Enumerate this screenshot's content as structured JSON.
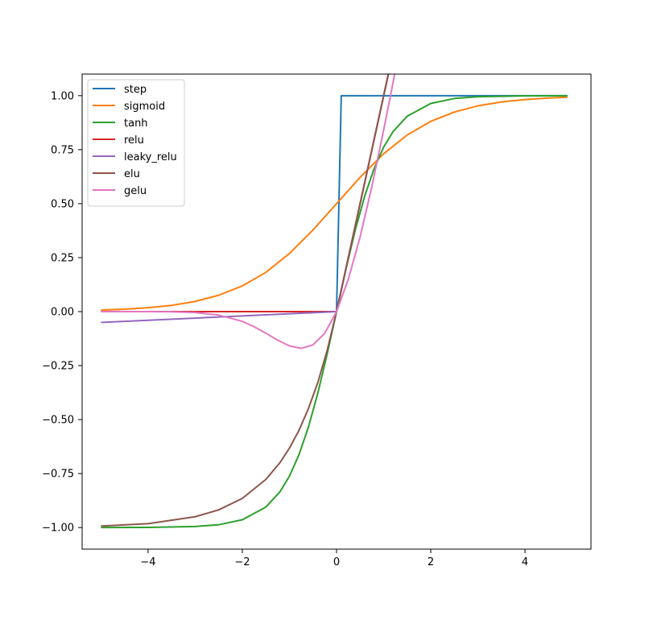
{
  "chart_data": {
    "type": "line",
    "title": "",
    "xlabel": "",
    "ylabel": "",
    "xlim": [
      -5.4,
      5.4
    ],
    "ylim": [
      -1.1,
      1.1
    ],
    "xticks": [
      -4,
      -2,
      0,
      2,
      4
    ],
    "xtick_labels": [
      "−4",
      "−2",
      "0",
      "2",
      "4"
    ],
    "yticks": [
      -1.0,
      -0.75,
      -0.5,
      -0.25,
      0.0,
      0.25,
      0.5,
      0.75,
      1.0
    ],
    "ytick_labels": [
      "−1.00",
      "−0.75",
      "−0.50",
      "−0.25",
      "0.00",
      "0.25",
      "0.50",
      "0.75",
      "1.00"
    ],
    "grid": false,
    "legend_position": "top-left",
    "series": [
      {
        "name": "step",
        "color": "#1f77b4",
        "x": [
          -5,
          -4,
          -3,
          -2,
          -1,
          0,
          0.1,
          1,
          2,
          3,
          4,
          4.9
        ],
        "y": [
          0,
          0,
          0,
          0,
          0,
          0,
          1,
          1,
          1,
          1,
          1,
          1
        ]
      },
      {
        "name": "sigmoid",
        "color": "#ff7f0e",
        "x": [
          -5,
          -4.5,
          -4,
          -3.5,
          -3,
          -2.5,
          -2,
          -1.5,
          -1,
          -0.5,
          0,
          0.5,
          1,
          1.5,
          2,
          2.5,
          3,
          3.5,
          4,
          4.5,
          4.9
        ],
        "y": [
          0.007,
          0.011,
          0.018,
          0.029,
          0.047,
          0.076,
          0.119,
          0.182,
          0.269,
          0.378,
          0.5,
          0.622,
          0.731,
          0.818,
          0.881,
          0.924,
          0.953,
          0.971,
          0.982,
          0.989,
          0.993
        ]
      },
      {
        "name": "tanh",
        "color": "#2ca02c",
        "x": [
          -5,
          -4,
          -3,
          -2.5,
          -2,
          -1.5,
          -1.2,
          -1,
          -0.8,
          -0.6,
          -0.4,
          -0.2,
          0,
          0.2,
          0.4,
          0.6,
          0.8,
          1,
          1.2,
          1.5,
          2,
          2.5,
          3,
          4,
          4.9
        ],
        "y": [
          -0.9999,
          -0.9993,
          -0.995,
          -0.987,
          -0.964,
          -0.905,
          -0.834,
          -0.762,
          -0.664,
          -0.537,
          -0.38,
          -0.197,
          0,
          0.197,
          0.38,
          0.537,
          0.664,
          0.762,
          0.834,
          0.905,
          0.964,
          0.987,
          0.995,
          0.9993,
          0.9999
        ]
      },
      {
        "name": "relu",
        "color": "#d62728",
        "x": [
          -5,
          0,
          1.1
        ],
        "y": [
          0,
          0,
          1.1
        ]
      },
      {
        "name": "leaky_relu",
        "color": "#9467bd",
        "x": [
          -5,
          0,
          1.1
        ],
        "y": [
          -0.05,
          0,
          1.1
        ]
      },
      {
        "name": "elu",
        "color": "#8c564b",
        "x": [
          -5,
          -4,
          -3,
          -2.5,
          -2,
          -1.5,
          -1.2,
          -1,
          -0.8,
          -0.6,
          -0.4,
          -0.2,
          0,
          1.1
        ],
        "y": [
          -0.993,
          -0.982,
          -0.95,
          -0.918,
          -0.865,
          -0.777,
          -0.699,
          -0.632,
          -0.551,
          -0.451,
          -0.33,
          -0.181,
          0,
          1.1
        ]
      },
      {
        "name": "gelu",
        "color": "#e377c2",
        "x": [
          -5,
          -4,
          -3.5,
          -3,
          -2.5,
          -2,
          -1.75,
          -1.5,
          -1.25,
          -1,
          -0.75,
          -0.5,
          -0.25,
          0,
          0.25,
          0.5,
          0.75,
          1,
          1.15,
          1.25
        ],
        "y": [
          0,
          -0.0001,
          -0.0008,
          -0.004,
          -0.016,
          -0.045,
          -0.07,
          -0.1,
          -0.132,
          -0.159,
          -0.17,
          -0.154,
          -0.1,
          0,
          0.15,
          0.346,
          0.58,
          0.841,
          1.006,
          1.118
        ]
      }
    ]
  }
}
